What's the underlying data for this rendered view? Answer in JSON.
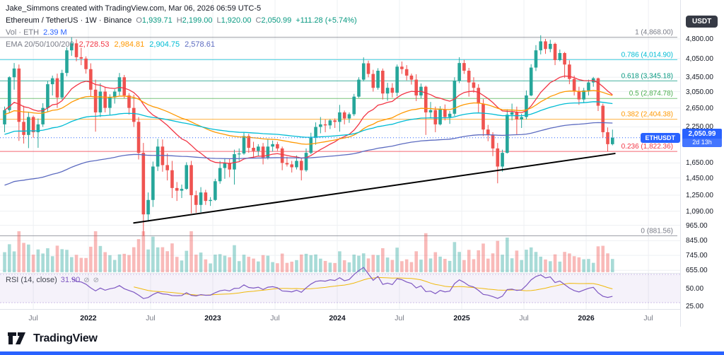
{
  "header": {
    "attribution": "Jake_Simmons created with TradingView.com, Mar 06, 2026 06:59 UTC-5",
    "symbol_title": "Ethereum / TetherUS · 1W · Binance",
    "ohlc": {
      "o": {
        "label": "O",
        "value": "1,939.71"
      },
      "h": {
        "label": "H",
        "value": "2,199.00"
      },
      "l": {
        "label": "L",
        "value": "1,920.00"
      },
      "c": {
        "label": "C",
        "value": "2,050.99"
      }
    },
    "change": "+111.28 (+5.74%)",
    "vol_label": "Vol · ETH",
    "vol_value": "2.39 M",
    "ema_label": "EMA 20/50/100/200",
    "ema_values": [
      "2,728.53",
      "2,984.81",
      "2,904.75",
      "2,578.61"
    ],
    "rsi_label": "RSI (14, close)",
    "rsi_value": "31.90"
  },
  "colors": {
    "up": "#26a69a",
    "down": "#ef5350",
    "ema": [
      "#f23645",
      "#ff9800",
      "#00bcd4",
      "#5c6bc0"
    ],
    "rsi_line": "#7e57c2",
    "rsi_ma": "#f0b90b",
    "accent": "#2962ff",
    "grid": "#eef0f3",
    "separator": "#e0e3eb",
    "trendline": "#000000"
  },
  "price_axis": {
    "currency": "USDT",
    "ticks": [
      {
        "label": "4,800.00",
        "value": 4800
      },
      {
        "label": "4,050.00",
        "value": 4050
      },
      {
        "label": "3,450.00",
        "value": 3450
      },
      {
        "label": "3,050.00",
        "value": 3050
      },
      {
        "label": "2,650.00",
        "value": 2650
      },
      {
        "label": "2,250.00",
        "value": 2250
      },
      {
        "label": "1,650.00",
        "value": 1650
      },
      {
        "label": "1,450.00",
        "value": 1450
      },
      {
        "label": "1,250.00",
        "value": 1250
      },
      {
        "label": "1,090.00",
        "value": 1090
      },
      {
        "label": "965.00",
        "value": 965
      },
      {
        "label": "845.00",
        "value": 845
      },
      {
        "label": "745.00",
        "value": 745
      },
      {
        "label": "655.00",
        "value": 655
      }
    ],
    "rsi_ticks": [
      {
        "label": "50.00",
        "value": 50
      },
      {
        "label": "25.00",
        "value": 25
      }
    ],
    "badge": {
      "symbol": "ETHUSDT",
      "price": "2,050.99",
      "countdown": "2d 13h"
    }
  },
  "time_axis": {
    "labels": [
      {
        "text": "Jul",
        "index": 6,
        "major": false
      },
      {
        "text": "2022",
        "index": 17.5,
        "major": true
      },
      {
        "text": "Jul",
        "index": 30.5,
        "major": false
      },
      {
        "text": "2023",
        "index": 43.5,
        "major": true
      },
      {
        "text": "Jul",
        "index": 56.5,
        "major": false
      },
      {
        "text": "2024",
        "index": 69.5,
        "major": true
      },
      {
        "text": "Jul",
        "index": 82.5,
        "major": false
      },
      {
        "text": "2025",
        "index": 95.5,
        "major": true
      },
      {
        "text": "Jul",
        "index": 108.5,
        "major": false
      },
      {
        "text": "2026",
        "index": 121.5,
        "major": true
      },
      {
        "text": "Jul",
        "index": 134.5,
        "major": false
      }
    ]
  },
  "footer": {
    "brand": "TradingView"
  },
  "chart_data": {
    "type": "candlestick",
    "symbol": "ETHUSDT",
    "timeframe": "1W",
    "log_scale": true,
    "visible_price_range": [
      620,
      5300
    ],
    "last_candle": {
      "open": 1939.71,
      "high": 2199.0,
      "low": 1920.0,
      "close": 2050.99
    },
    "overlays": {
      "last_price": 2050.99,
      "fib_retracement": {
        "high": 4868.0,
        "low": 881.56,
        "levels": [
          {
            "label": "1 (4,868.00)",
            "ratio": 1,
            "value": 4868.0,
            "color": "#787b86"
          },
          {
            "label": "0.786 (4,014.90)",
            "ratio": 0.786,
            "value": 4014.9,
            "color": "#00bcd4"
          },
          {
            "label": "0.618 (3,345.18)",
            "ratio": 0.618,
            "value": 3345.18,
            "color": "#089981"
          },
          {
            "label": "0.5 (2,874.78)",
            "ratio": 0.5,
            "value": 2874.78,
            "color": "#4caf50"
          },
          {
            "label": "0.382 (2,404.38)",
            "ratio": 0.382,
            "value": 2404.38,
            "color": "#ff9800"
          },
          {
            "label": "0.236 (1,822.36)",
            "ratio": 0.236,
            "value": 1822.36,
            "color": "#f23645"
          },
          {
            "label": "0 (881.56)",
            "ratio": 0,
            "value": 881.56,
            "color": "#787b86"
          }
        ]
      },
      "trendline": {
        "start": {
          "index": 27,
          "price": 985
        },
        "end": {
          "index": 127.5,
          "price": 1790
        }
      },
      "emas": {
        "periods": [
          20,
          50,
          100,
          200
        ],
        "last_values": [
          2728.53,
          2984.81,
          2904.75,
          2578.61
        ]
      }
    },
    "rsi": {
      "period": 14,
      "source": "close",
      "last_value": 31.9,
      "upper_band": 70,
      "lower_band": 30
    },
    "candles": [
      [
        2300,
        2680,
        2150,
        2600
      ],
      [
        2600,
        3480,
        2550,
        3450
      ],
      [
        3450,
        3900,
        3100,
        3720
      ],
      [
        3720,
        3850,
        1995,
        2350
      ],
      [
        2350,
        2700,
        1950,
        2100
      ],
      [
        2100,
        2550,
        1875,
        2450
      ],
      [
        2450,
        2480,
        2050,
        2150
      ],
      [
        2150,
        2420,
        1880,
        2300
      ],
      [
        2300,
        2760,
        2250,
        2650
      ],
      [
        2650,
        3340,
        2560,
        3250
      ],
      [
        3250,
        3500,
        2950,
        3420
      ],
      [
        3420,
        3560,
        2650,
        2900
      ],
      [
        2900,
        3680,
        2850,
        3580
      ],
      [
        3580,
        4460,
        3480,
        4350
      ],
      [
        4350,
        4868,
        4150,
        4620
      ],
      [
        4620,
        4780,
        3960,
        4100
      ],
      [
        4100,
        4450,
        3830,
        4050
      ],
      [
        4050,
        4130,
        3560,
        3700
      ],
      [
        3700,
        3890,
        2930,
        3100
      ],
      [
        3100,
        3380,
        2160,
        2550
      ],
      [
        2550,
        3280,
        2450,
        3050
      ],
      [
        3050,
        3180,
        2550,
        2650
      ],
      [
        2650,
        2980,
        2480,
        2900
      ],
      [
        2900,
        3110,
        2750,
        3050
      ],
      [
        3050,
        3580,
        2950,
        3450
      ],
      [
        3450,
        3520,
        2880,
        2950
      ],
      [
        2950,
        3010,
        2500,
        2650
      ],
      [
        2650,
        2970,
        2250,
        2350
      ],
      [
        2350,
        2450,
        1700,
        1800
      ],
      [
        1800,
        1960,
        881.56,
        1060
      ],
      [
        1060,
        1280,
        995,
        1200
      ],
      [
        1200,
        1670,
        1130,
        1600
      ],
      [
        1600,
        2030,
        1540,
        1900
      ],
      [
        1900,
        2020,
        1530,
        1620
      ],
      [
        1620,
        1790,
        1420,
        1550
      ],
      [
        1550,
        1680,
        1220,
        1330
      ],
      [
        1330,
        1400,
        1190,
        1300
      ],
      [
        1300,
        1370,
        1220,
        1320
      ],
      [
        1320,
        1660,
        1310,
        1620
      ],
      [
        1620,
        1680,
        1070,
        1250
      ],
      [
        1250,
        1300,
        1075,
        1150
      ],
      [
        1150,
        1340,
        1080,
        1280
      ],
      [
        1280,
        1310,
        1150,
        1190
      ],
      [
        1190,
        1230,
        1140,
        1200
      ],
      [
        1200,
        1440,
        1190,
        1410
      ],
      [
        1410,
        1680,
        1380,
        1580
      ],
      [
        1580,
        1720,
        1440,
        1650
      ],
      [
        1650,
        1710,
        1460,
        1560
      ],
      [
        1560,
        1850,
        1370,
        1780
      ],
      [
        1780,
        1870,
        1680,
        1790
      ],
      [
        1790,
        2140,
        1770,
        2080
      ],
      [
        2080,
        2120,
        1800,
        1880
      ],
      [
        1880,
        1980,
        1720,
        1830
      ],
      [
        1830,
        1940,
        1750,
        1900
      ],
      [
        1900,
        1960,
        1630,
        1730
      ],
      [
        1730,
        2030,
        1700,
        1900
      ],
      [
        1900,
        2000,
        1820,
        1940
      ],
      [
        1940,
        1980,
        1830,
        1870
      ],
      [
        1870,
        1900,
        1550,
        1650
      ],
      [
        1650,
        1740,
        1600,
        1630
      ],
      [
        1630,
        1680,
        1520,
        1590
      ],
      [
        1590,
        1760,
        1560,
        1680
      ],
      [
        1680,
        1720,
        1420,
        1550
      ],
      [
        1550,
        1870,
        1530,
        1800
      ],
      [
        1800,
        2140,
        1780,
        2050
      ],
      [
        2050,
        2340,
        1930,
        2250
      ],
      [
        2250,
        2450,
        2130,
        2300
      ],
      [
        2300,
        2400,
        2150,
        2280
      ],
      [
        2280,
        2410,
        2210,
        2380
      ],
      [
        2380,
        2420,
        2230,
        2350
      ],
      [
        2350,
        2720,
        2160,
        2550
      ],
      [
        2550,
        2590,
        2300,
        2420
      ],
      [
        2420,
        2550,
        2330,
        2510
      ],
      [
        2510,
        2990,
        2470,
        2920
      ],
      [
        2920,
        3450,
        2890,
        3380
      ],
      [
        3380,
        4093,
        3330,
        3890
      ],
      [
        3890,
        3980,
        3450,
        3550
      ],
      [
        3550,
        3680,
        3050,
        3150
      ],
      [
        3150,
        3730,
        3100,
        3650
      ],
      [
        3650,
        3720,
        2850,
        3000
      ],
      [
        3000,
        3290,
        2820,
        3150
      ],
      [
        3150,
        3280,
        2900,
        3020
      ],
      [
        3020,
        3850,
        2930,
        3780
      ],
      [
        3780,
        3950,
        3550,
        3700
      ],
      [
        3700,
        3830,
        3360,
        3500
      ],
      [
        3500,
        3560,
        3240,
        3380
      ],
      [
        3380,
        3540,
        2810,
        2950
      ],
      [
        2950,
        3270,
        2880,
        3180
      ],
      [
        3180,
        3210,
        2100,
        2550
      ],
      [
        2550,
        2790,
        2420,
        2600
      ],
      [
        2600,
        2680,
        2150,
        2300
      ],
      [
        2300,
        2690,
        2280,
        2620
      ],
      [
        2620,
        2730,
        2380,
        2450
      ],
      [
        2450,
        2580,
        2310,
        2520
      ],
      [
        2520,
        3450,
        2470,
        3350
      ],
      [
        3350,
        4100,
        3280,
        3900
      ],
      [
        3900,
        4010,
        3550,
        3650
      ],
      [
        3650,
        3740,
        2920,
        3300
      ],
      [
        3300,
        3450,
        3020,
        3150
      ],
      [
        3150,
        3250,
        2550,
        2750
      ],
      [
        2750,
        2860,
        2080,
        2200
      ],
      [
        2200,
        2290,
        1990,
        2100
      ],
      [
        2100,
        2150,
        1750,
        1870
      ],
      [
        1870,
        1960,
        1385,
        1600
      ],
      [
        1600,
        1850,
        1530,
        1800
      ],
      [
        1800,
        2620,
        1790,
        2500
      ],
      [
        2500,
        2750,
        2380,
        2550
      ],
      [
        2550,
        2680,
        2110,
        2400
      ],
      [
        2400,
        2520,
        2230,
        2450
      ],
      [
        2450,
        3080,
        2400,
        2950
      ],
      [
        2950,
        3860,
        2930,
        3750
      ],
      [
        3750,
        4550,
        3640,
        4350
      ],
      [
        4350,
        4953,
        4200,
        4700
      ],
      [
        4700,
        4800,
        4220,
        4400
      ],
      [
        4400,
        4760,
        4280,
        4600
      ],
      [
        4600,
        4650,
        3830,
        4000
      ],
      [
        4000,
        4380,
        3960,
        4250
      ],
      [
        4250,
        4290,
        3430,
        3850
      ],
      [
        3850,
        3990,
        3250,
        3400
      ],
      [
        3400,
        3500,
        2950,
        3050
      ],
      [
        3050,
        3180,
        2720,
        2850
      ],
      [
        2850,
        3150,
        2760,
        3080
      ],
      [
        3080,
        3380,
        2950,
        3300
      ],
      [
        3300,
        3460,
        3180,
        3420
      ],
      [
        3420,
        3440,
        2580,
        2700
      ],
      [
        2700,
        2750,
        2050,
        2150
      ],
      [
        2150,
        2240,
        1822.36,
        1939.71
      ],
      [
        1939.71,
        2199,
        1920,
        2050.99
      ]
    ]
  }
}
